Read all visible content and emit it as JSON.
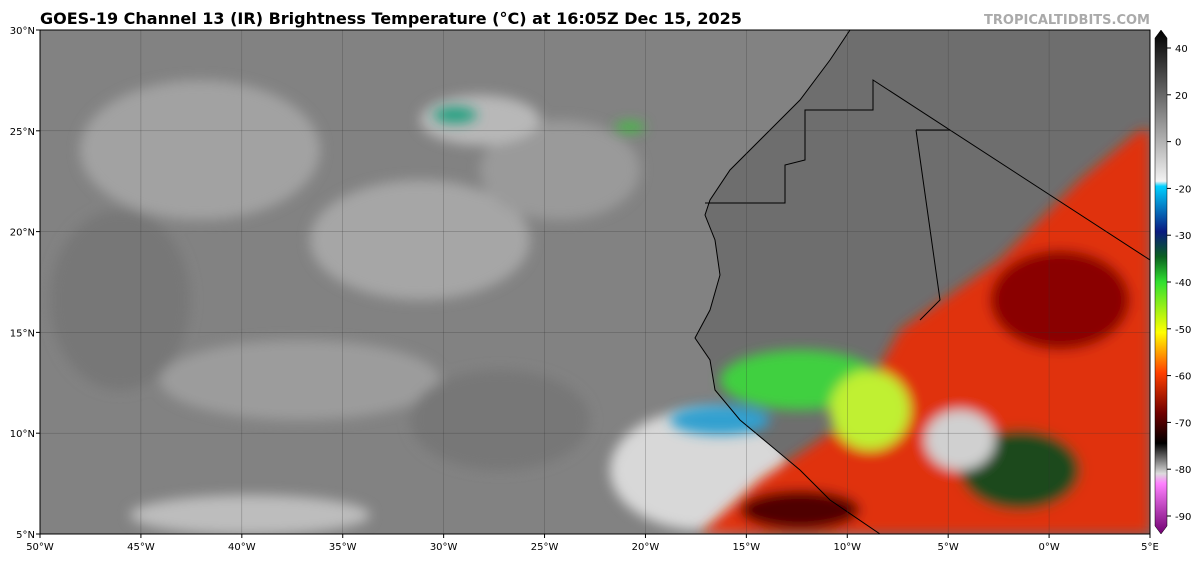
{
  "header": {
    "title": "GOES-19 Channel 13 (IR) Brightness Temperature (°C) at 16:05Z Dec 15, 2025",
    "watermark": "TROPICALTIDBITS.COM"
  },
  "map": {
    "lat_labels": [
      "30°N",
      "25°N",
      "20°N",
      "15°N",
      "10°N",
      "5°N"
    ],
    "lon_labels": [
      "50°W",
      "45°W",
      "40°W",
      "35°W",
      "30°W",
      "25°W",
      "20°W",
      "15°W",
      "10°W",
      "5°W",
      "0°W",
      "5°E"
    ]
  },
  "colorbar": {
    "ticks": [
      40,
      20,
      0,
      -20,
      -30,
      -40,
      -50,
      -60,
      -70,
      -80,
      -90
    ]
  }
}
